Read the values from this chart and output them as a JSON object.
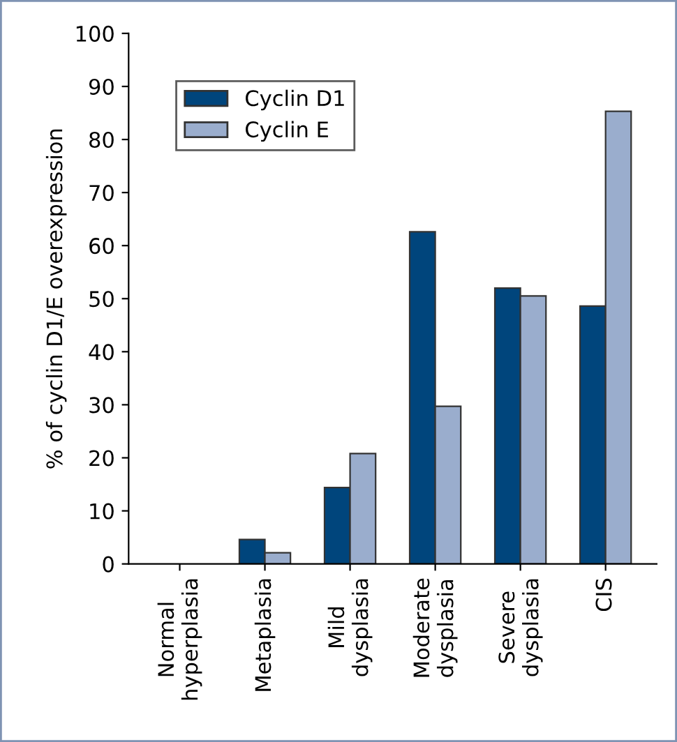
{
  "chart_data": {
    "type": "bar",
    "ylabel": "% of cyclin D1/E overexpression",
    "categories": [
      "Normal\nhyperplasia",
      "Metaplasia",
      "Mild\ndysplasia",
      "Moderate\ndysplasia",
      "Severe\ndysplasia",
      "CIS"
    ],
    "series": [
      {
        "name": "Cyclin D1",
        "color": "#00457c",
        "values": [
          0,
          4.6,
          14.4,
          62.6,
          52,
          48.6
        ]
      },
      {
        "name": "Cyclin E",
        "color": "#9aadcd",
        "values": [
          0,
          2.1,
          20.8,
          29.7,
          50.5,
          85.3
        ]
      }
    ],
    "ylim": [
      0,
      100
    ],
    "yticks": [
      0,
      10,
      20,
      30,
      40,
      50,
      60,
      70,
      80,
      90,
      100
    ],
    "grid": false,
    "legend": "top left"
  }
}
